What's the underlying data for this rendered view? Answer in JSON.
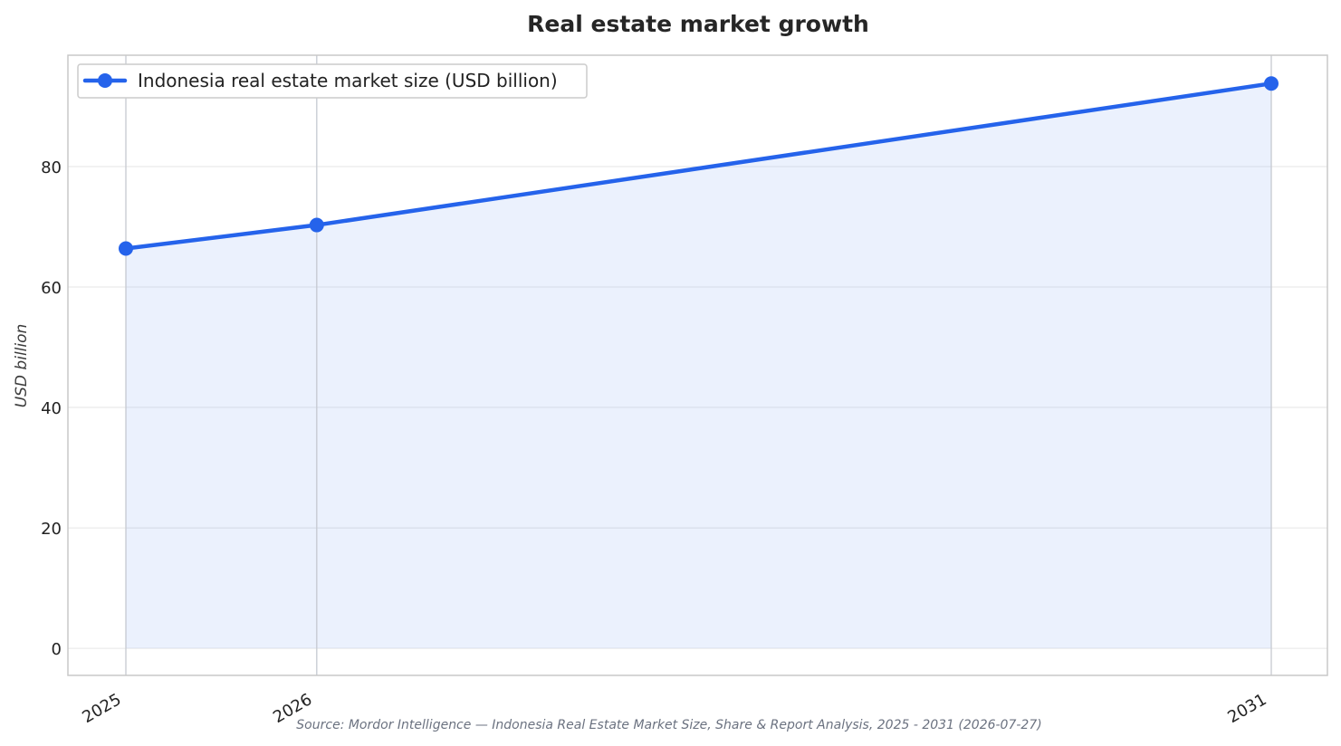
{
  "chart_data": {
    "type": "area",
    "title": "Real estate market growth",
    "xlabel": "",
    "ylabel": "USD billion",
    "categories": [
      "2025",
      "2026",
      "2031"
    ],
    "x": [
      2025,
      2026,
      2031
    ],
    "series": [
      {
        "name": "Indonesia real estate market size (USD billion)",
        "values": [
          66.4,
          70.3,
          93.8
        ]
      }
    ],
    "yticks": [
      0,
      20,
      40,
      60,
      80
    ],
    "ylim": [
      -4.5,
      98.5
    ],
    "grid": true,
    "legend": "top-left",
    "source": "Source: Mordor Intelligence — Indonesia Real Estate Market Size, Share & Report Analysis, 2025 - 2031 (2026-07-27)",
    "colors": {
      "line": "#2563eb",
      "fill": "#2563eb",
      "grid": "#e6e6e6",
      "axis": "#c8c8c8"
    }
  }
}
